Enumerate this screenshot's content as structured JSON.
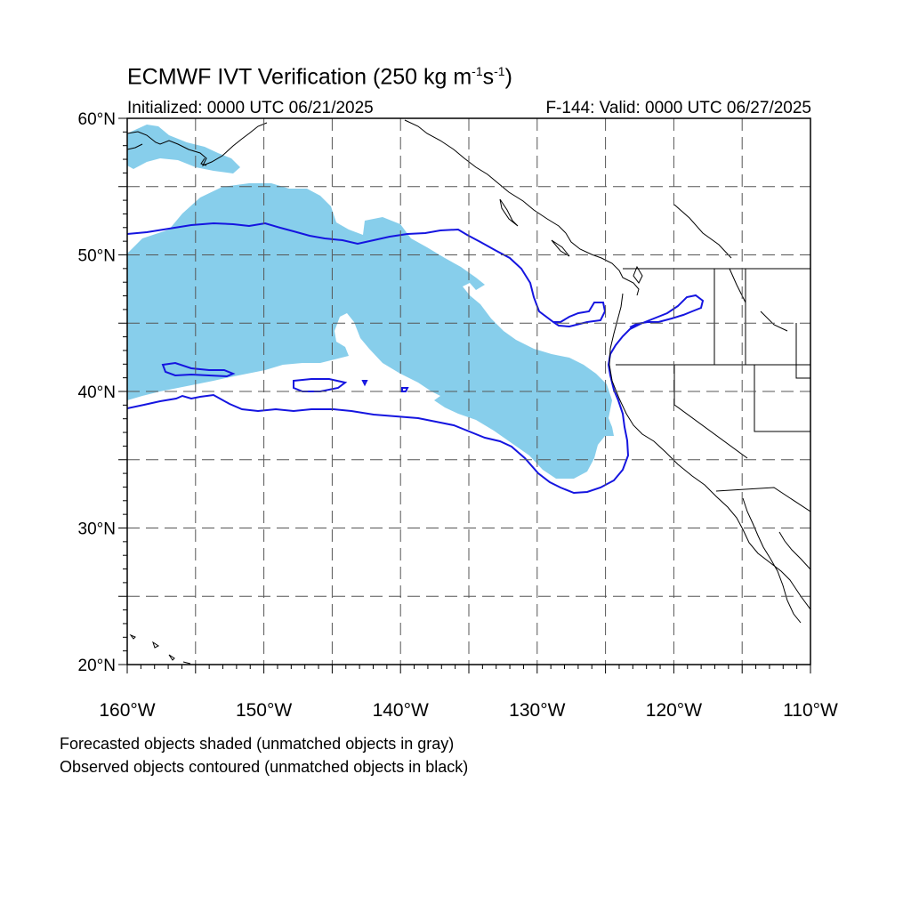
{
  "title": {
    "main_prefix": "ECMWF IVT Verification (250 kg m",
    "sup1": "-1",
    "mid": "s",
    "sup2": "-1",
    "suffix": ")"
  },
  "init_label": "Initialized: 0000 UTC 06/21/2025",
  "valid_label": "F-144: Valid: 0000 UTC 06/27/2025",
  "footnote_forecast": "Forecasted objects shaded (unmatched objects in gray)",
  "footnote_observed": "Observed objects contoured (unmatched objects in black)",
  "map": {
    "lon_range": [
      -160,
      -110
    ],
    "lat_range": [
      20,
      60
    ],
    "lat_labels": [
      {
        "lat": 60,
        "text": "60°N"
      },
      {
        "lat": 50,
        "text": "50°N"
      },
      {
        "lat": 40,
        "text": "40°N"
      },
      {
        "lat": 30,
        "text": "30°N"
      },
      {
        "lat": 20,
        "text": "20°N"
      }
    ],
    "lon_labels": [
      {
        "lon": -160,
        "text": "160°W"
      },
      {
        "lon": -150,
        "text": "150°W"
      },
      {
        "lon": -140,
        "text": "140°W"
      },
      {
        "lon": -130,
        "text": "130°W"
      },
      {
        "lon": -120,
        "text": "120°W"
      },
      {
        "lon": -110,
        "text": "110°W"
      }
    ],
    "gridlines": {
      "lon": [
        -155,
        -150,
        -145,
        -140,
        -135,
        -130,
        -125,
        -120,
        -115
      ],
      "lat": [
        25,
        30,
        35,
        40,
        45,
        50,
        55
      ]
    },
    "colors": {
      "forecast_fill": "#87ceeb",
      "observed_contour": "#1515e0",
      "coastline": "#000000",
      "gridline": "#555555"
    }
  }
}
